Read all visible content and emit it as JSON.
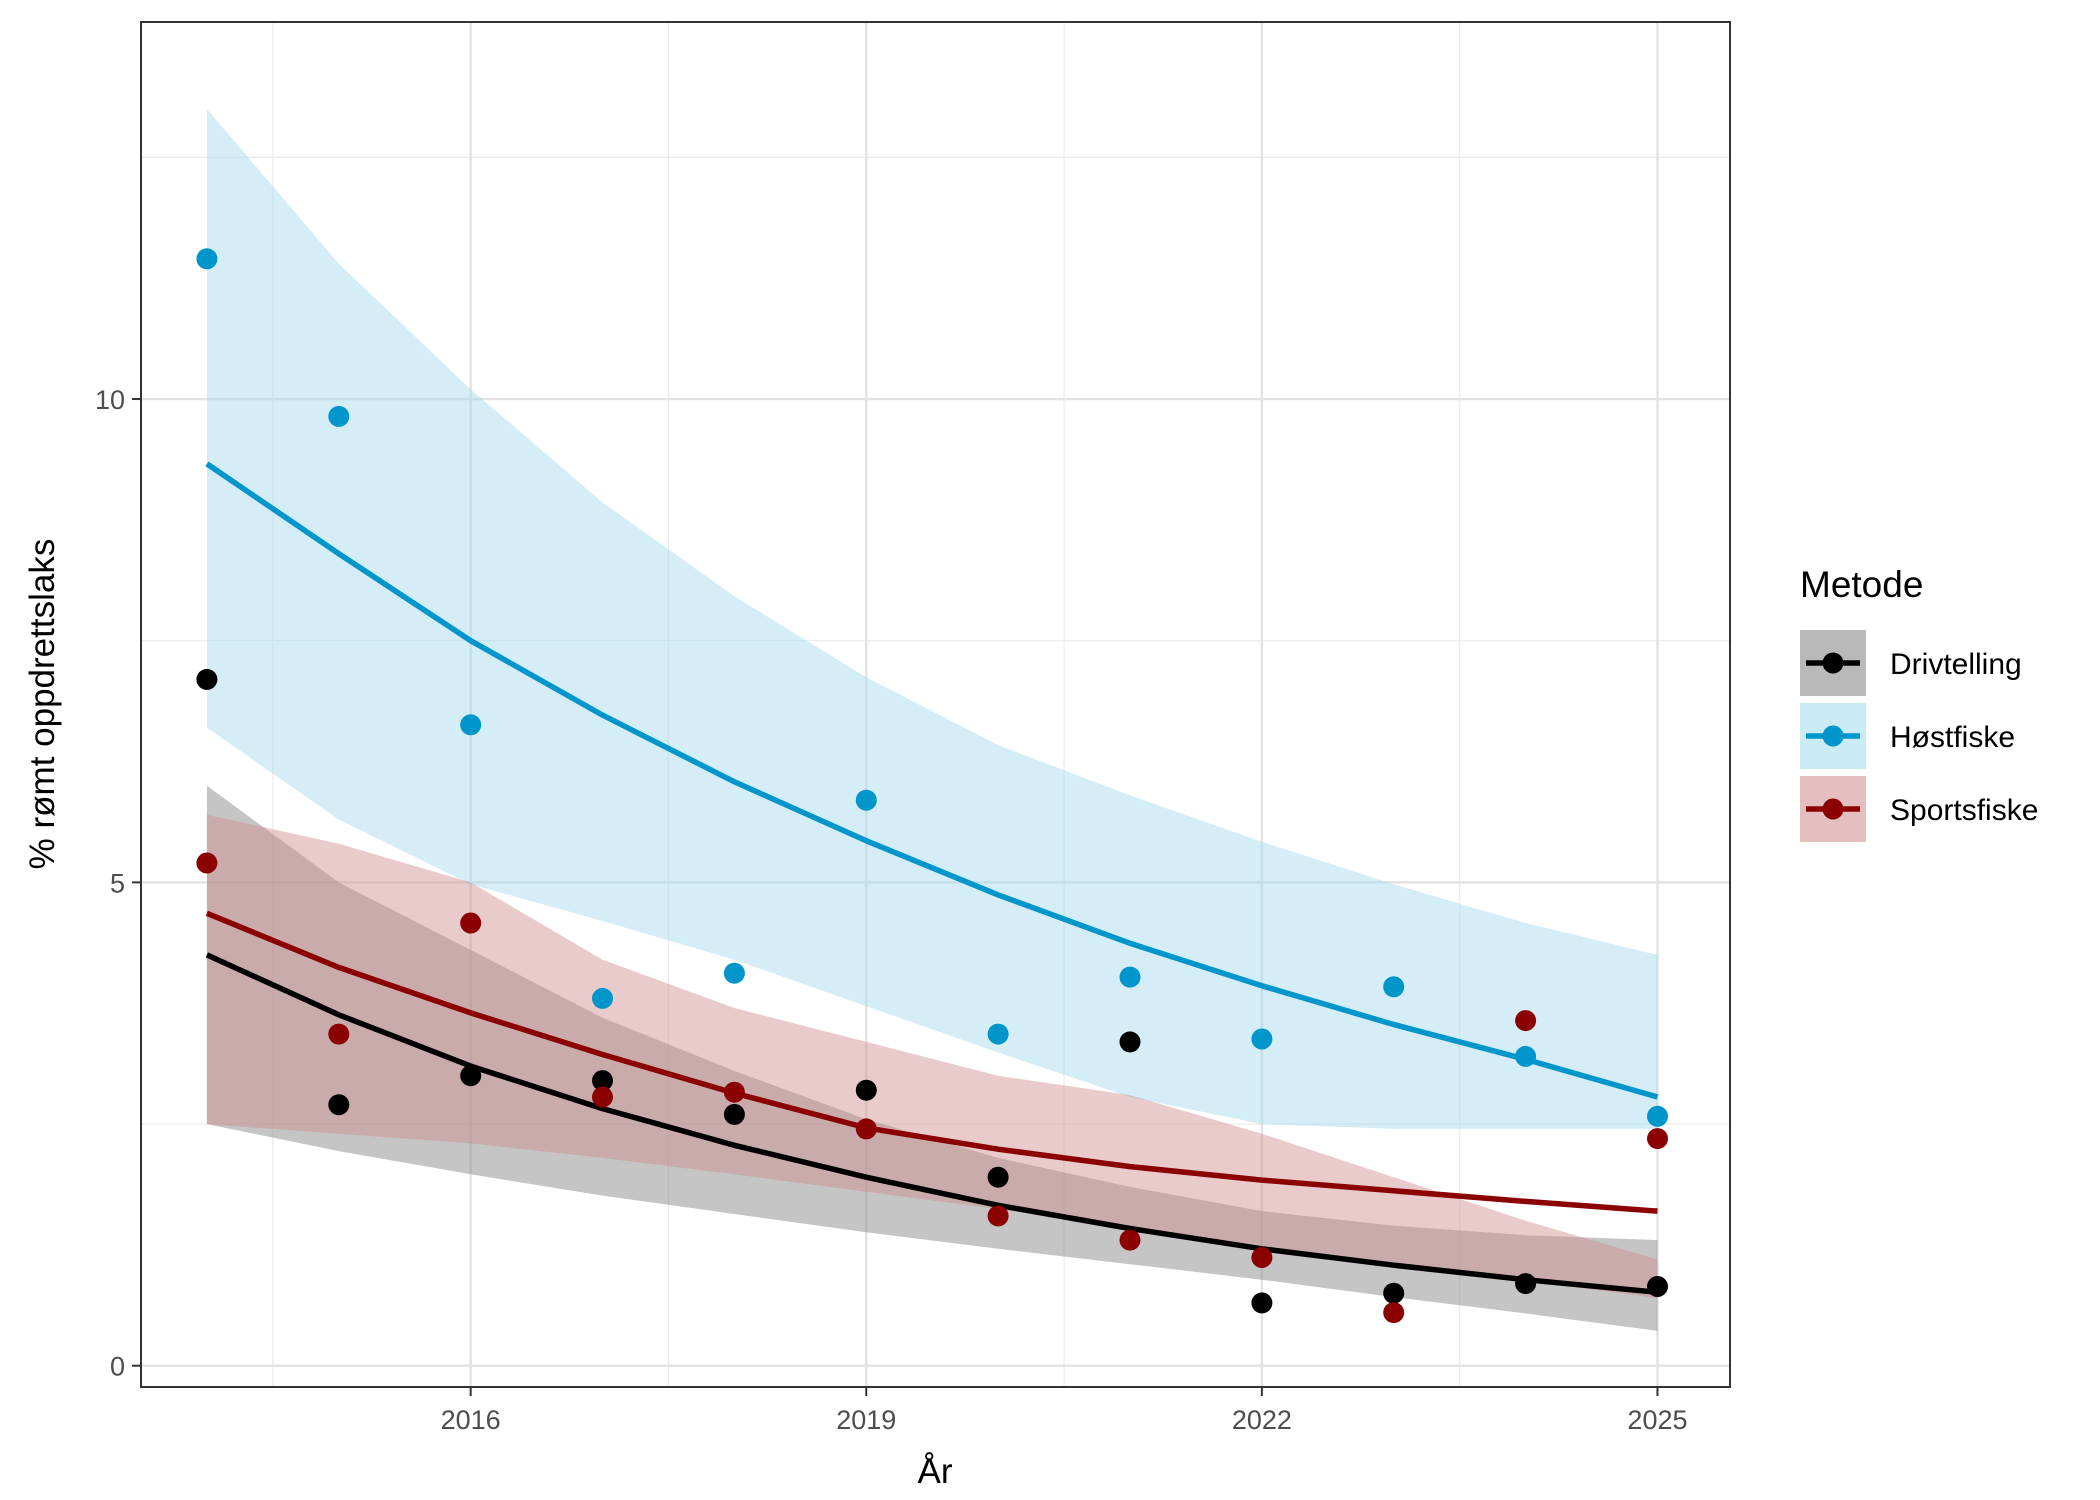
{
  "chart_data": {
    "type": "scatter",
    "title": "",
    "xlabel": "År",
    "ylabel": "% rømt oppdrettslaks",
    "xlim": [
      2013.5,
      2025.55
    ],
    "ylim": [
      -0.22,
      13.9
    ],
    "x_ticks": [
      2016,
      2019,
      2022,
      2025
    ],
    "y_ticks": [
      0,
      5,
      10
    ],
    "x_tick_labels": [
      "2016",
      "2019",
      "2022",
      "2025"
    ],
    "y_tick_labels": [
      "0",
      "5",
      "10"
    ],
    "grid": true,
    "legend": {
      "title": "Metode",
      "placement": "right"
    },
    "series": [
      {
        "name": "Drivtelling",
        "color": "#000000",
        "band_color": "#7f7f7f",
        "points": {
          "x": [
            2014,
            2015,
            2016,
            2017,
            2018,
            2019,
            2020,
            2021,
            2022,
            2023,
            2024,
            2025
          ],
          "y": [
            7.1,
            2.7,
            3.0,
            2.95,
            2.6,
            2.85,
            1.95,
            3.35,
            0.65,
            0.75,
            0.85,
            0.82
          ]
        },
        "fit": {
          "x": [
            2014,
            2015,
            2016,
            2017,
            2018,
            2019,
            2020,
            2021,
            2022,
            2023,
            2024,
            2025
          ],
          "y": [
            4.25,
            3.63,
            3.1,
            2.66,
            2.28,
            1.95,
            1.66,
            1.42,
            1.21,
            1.04,
            0.89,
            0.76
          ]
        },
        "band_lower": [
          2.5,
          2.22,
          1.98,
          1.76,
          1.57,
          1.38,
          1.21,
          1.05,
          0.89,
          0.71,
          0.54,
          0.36
        ],
        "band_upper": [
          6.0,
          5.0,
          4.3,
          3.6,
          3.05,
          2.55,
          2.15,
          1.85,
          1.6,
          1.45,
          1.35,
          1.3
        ]
      },
      {
        "name": "Høstfiske",
        "color": "#0096cc",
        "band_color": "#9fd8ee",
        "points": {
          "x": [
            2014,
            2015,
            2016,
            2017,
            2018,
            2019,
            2020,
            2021,
            2022,
            2023,
            2024,
            2025
          ],
          "y": [
            11.45,
            9.82,
            6.63,
            3.8,
            4.06,
            5.85,
            3.43,
            4.02,
            3.38,
            3.92,
            3.2,
            2.58
          ]
        },
        "fit": {
          "x": [
            2014,
            2015,
            2016,
            2017,
            2018,
            2019,
            2020,
            2021,
            2022,
            2023,
            2024,
            2025
          ],
          "y": [
            9.33,
            8.4,
            7.5,
            6.73,
            6.04,
            5.43,
            4.87,
            4.37,
            3.93,
            3.53,
            3.17,
            2.78
          ]
        },
        "band_lower": [
          6.6,
          5.65,
          4.98,
          4.6,
          4.2,
          3.72,
          3.24,
          2.78,
          2.5,
          2.45,
          2.45,
          2.45
        ],
        "band_upper": [
          13.0,
          11.4,
          10.1,
          8.93,
          7.96,
          7.12,
          6.42,
          5.9,
          5.42,
          4.98,
          4.58,
          4.25
        ]
      },
      {
        "name": "Sportsfiske",
        "color": "#8b0000",
        "band_color": "#d08b8b",
        "points": {
          "x": [
            2014,
            2015,
            2016,
            2017,
            2018,
            2019,
            2020,
            2021,
            2022,
            2023,
            2024,
            2025
          ],
          "y": [
            5.2,
            3.43,
            4.58,
            2.78,
            2.83,
            2.45,
            1.55,
            1.3,
            1.12,
            0.55,
            3.57,
            2.35
          ]
        },
        "fit": {
          "x": [
            2014,
            2015,
            2016,
            2017,
            2018,
            2019,
            2020,
            2021,
            2022,
            2023,
            2024,
            2025
          ],
          "y": [
            4.68,
            4.12,
            3.65,
            3.22,
            2.82,
            2.46,
            2.24,
            2.06,
            1.92,
            1.81,
            1.7,
            1.6
          ]
        },
        "band_lower": [
          2.5,
          2.4,
          2.3,
          2.15,
          1.98,
          1.8,
          1.62,
          1.43,
          1.24,
          1.05,
          0.88,
          0.7
        ],
        "band_upper": [
          5.7,
          5.4,
          5.0,
          4.2,
          3.7,
          3.35,
          3.0,
          2.8,
          2.4,
          1.95,
          1.5,
          1.1
        ]
      }
    ]
  }
}
